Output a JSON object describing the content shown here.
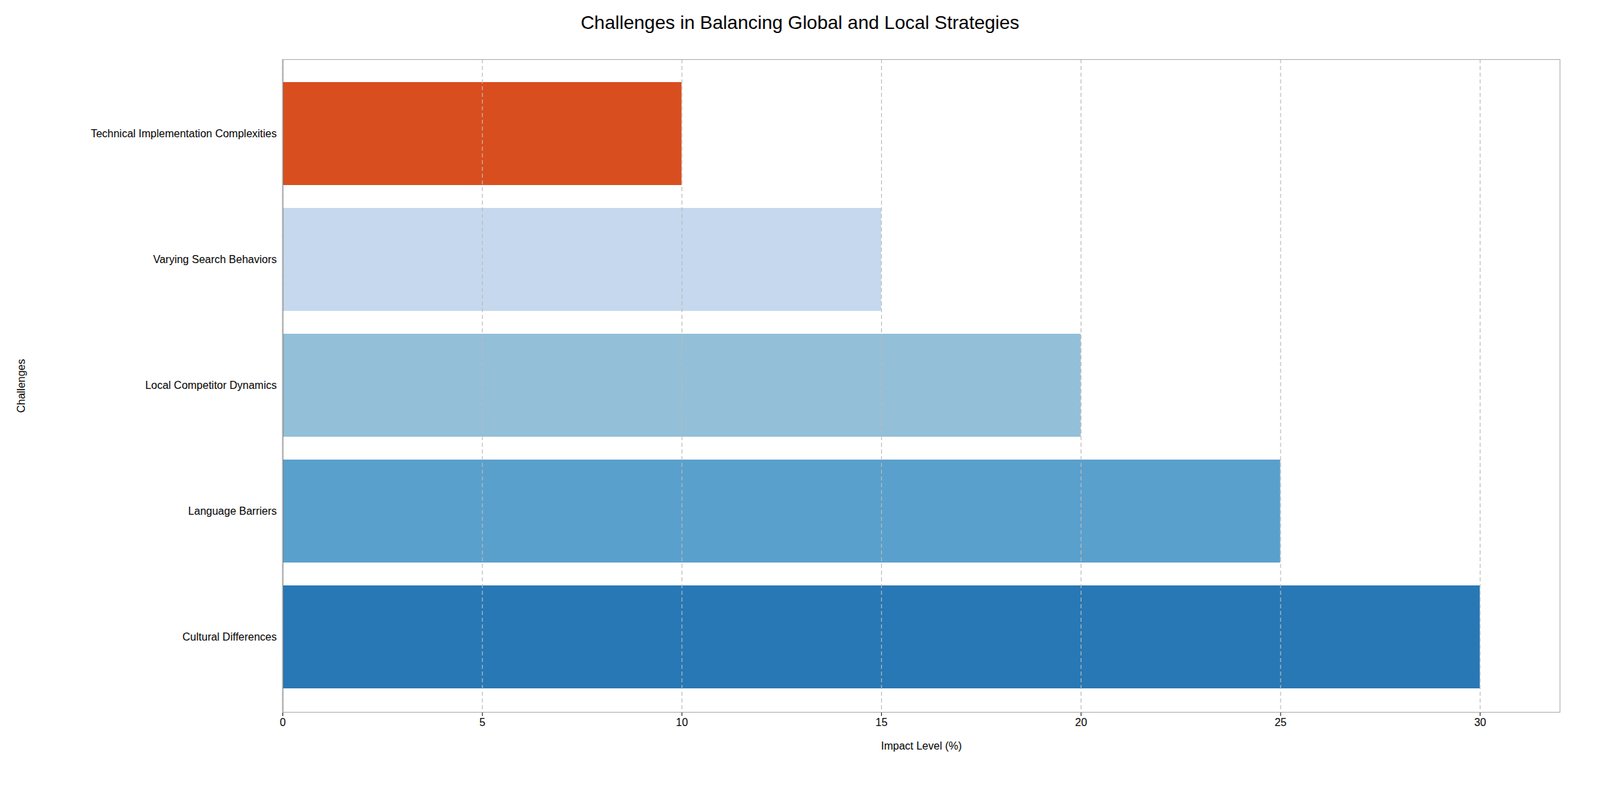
{
  "chart_data": {
    "type": "bar",
    "orientation": "horizontal",
    "title": "Challenges in Balancing Global and Local Strategies",
    "xlabel": "Impact Level (%)",
    "ylabel": "Challenges",
    "categories": [
      "Cultural Differences",
      "Language Barriers",
      "Local Competitor Dynamics",
      "Varying Search Behaviors",
      "Technical Implementation Complexities"
    ],
    "values": [
      30,
      25,
      20,
      15,
      10
    ],
    "colors": [
      "#2878b5",
      "#5aa0cc",
      "#93bfd8",
      "#c5d8ee",
      "#d94e1f"
    ],
    "xlim": [
      0,
      32
    ],
    "xticks": [
      0,
      5,
      10,
      15,
      20,
      25,
      30
    ],
    "grid": true
  }
}
